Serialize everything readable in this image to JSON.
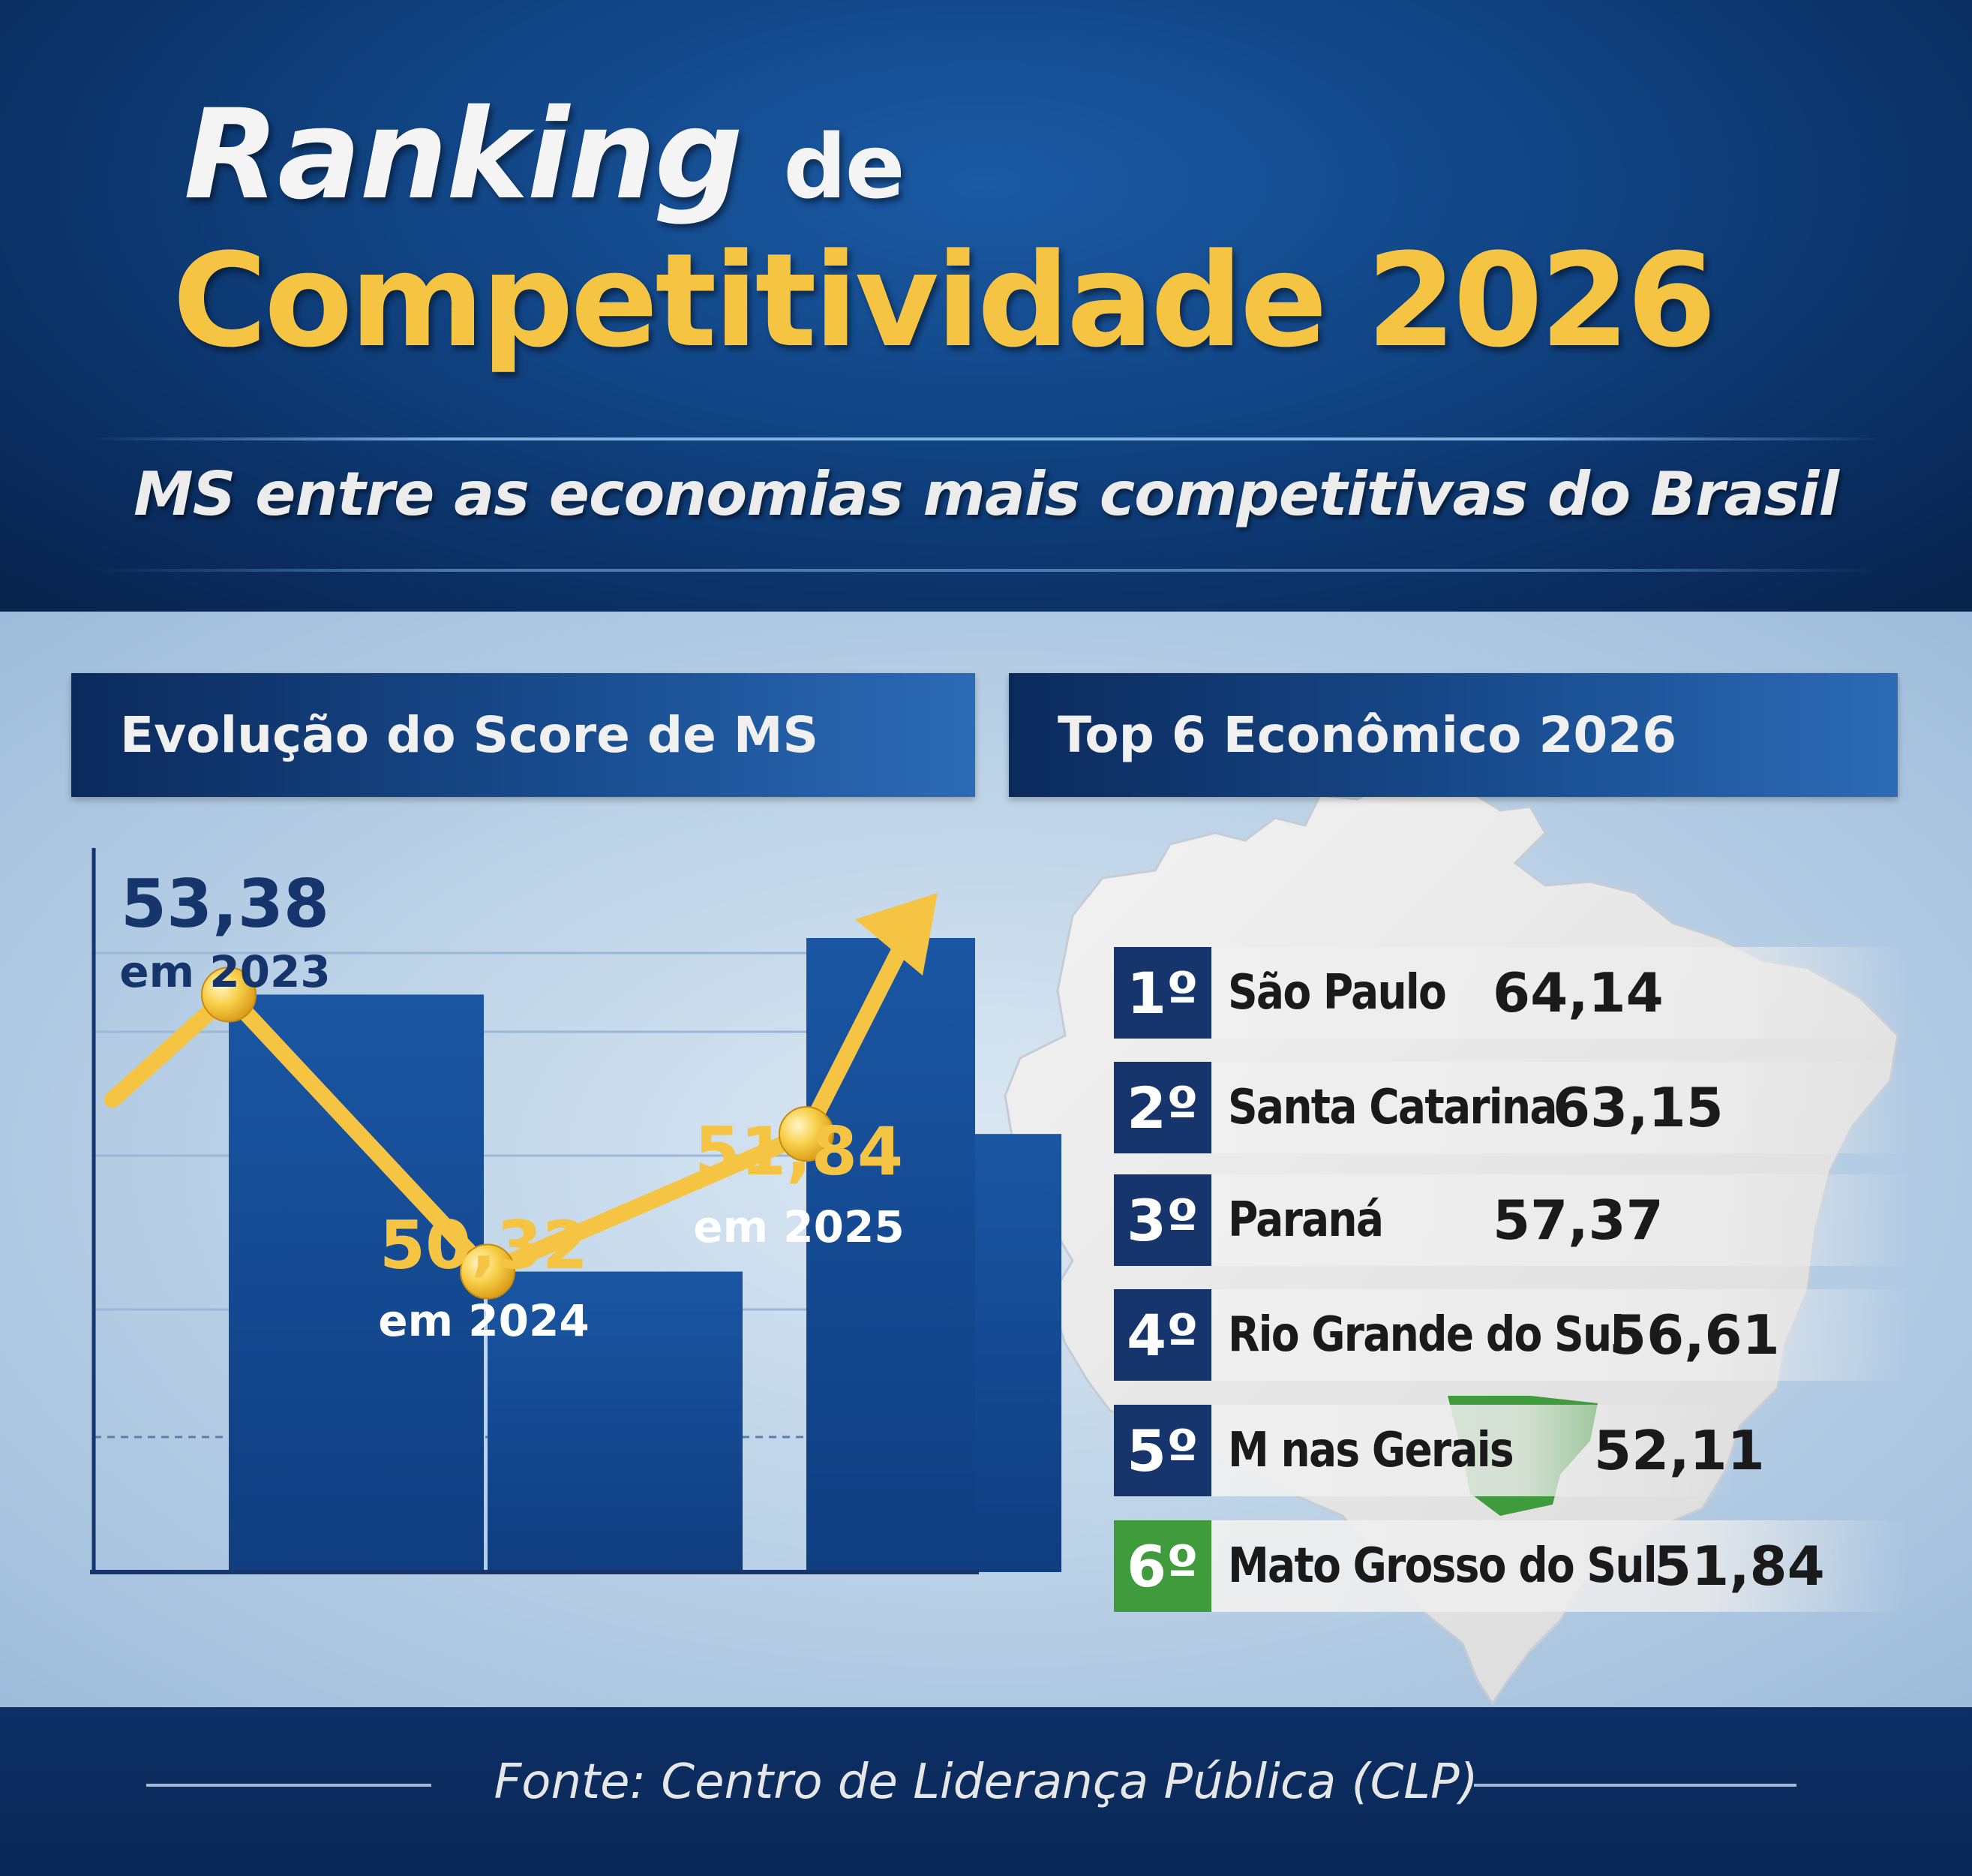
{
  "header": {
    "title_word1": "Ranking",
    "title_word2": "de",
    "title_line2": "Competitividade 2026",
    "subtitle": "MS entre as economias mais competitivas do Brasil"
  },
  "left_panel": {
    "heading": "Evolução do Score de MS"
  },
  "right_panel": {
    "heading": "Top 6 Econômico 2026"
  },
  "chart_data": {
    "type": "line",
    "categories": [
      "em 2023",
      "em 2024",
      "em 2025"
    ],
    "values": [
      53.38,
      50.32,
      51.84
    ],
    "value_labels": [
      "53,38",
      "50,32",
      "51,84"
    ],
    "ylim": [
      47,
      55
    ],
    "grid": true,
    "trend_arrow": true
  },
  "ranking": {
    "items": [
      {
        "position": "1º",
        "state": "São Paulo",
        "score": "64,14",
        "highlight": false
      },
      {
        "position": "2º",
        "state": "Santa Catarina",
        "score": "63,15",
        "highlight": false
      },
      {
        "position": "3º",
        "state": "Paraná",
        "score": "57,37",
        "highlight": false
      },
      {
        "position": "4º",
        "state": "Rio Grande do Sul",
        "score": "56,61",
        "highlight": false
      },
      {
        "position": "5º",
        "state": "M nas Gerais",
        "score": "52,11",
        "highlight": false
      },
      {
        "position": "6º",
        "state": "Mato Grosso do Sul",
        "score": "51,84",
        "highlight": true
      }
    ]
  },
  "footer": {
    "source": "Fonte: Centro de Liderança Pública (CLP)"
  },
  "colors": {
    "navy": "#0d2f66",
    "gold": "#f6c443",
    "ms_green": "#3f9b3c",
    "badge_blue": "#16356d"
  }
}
